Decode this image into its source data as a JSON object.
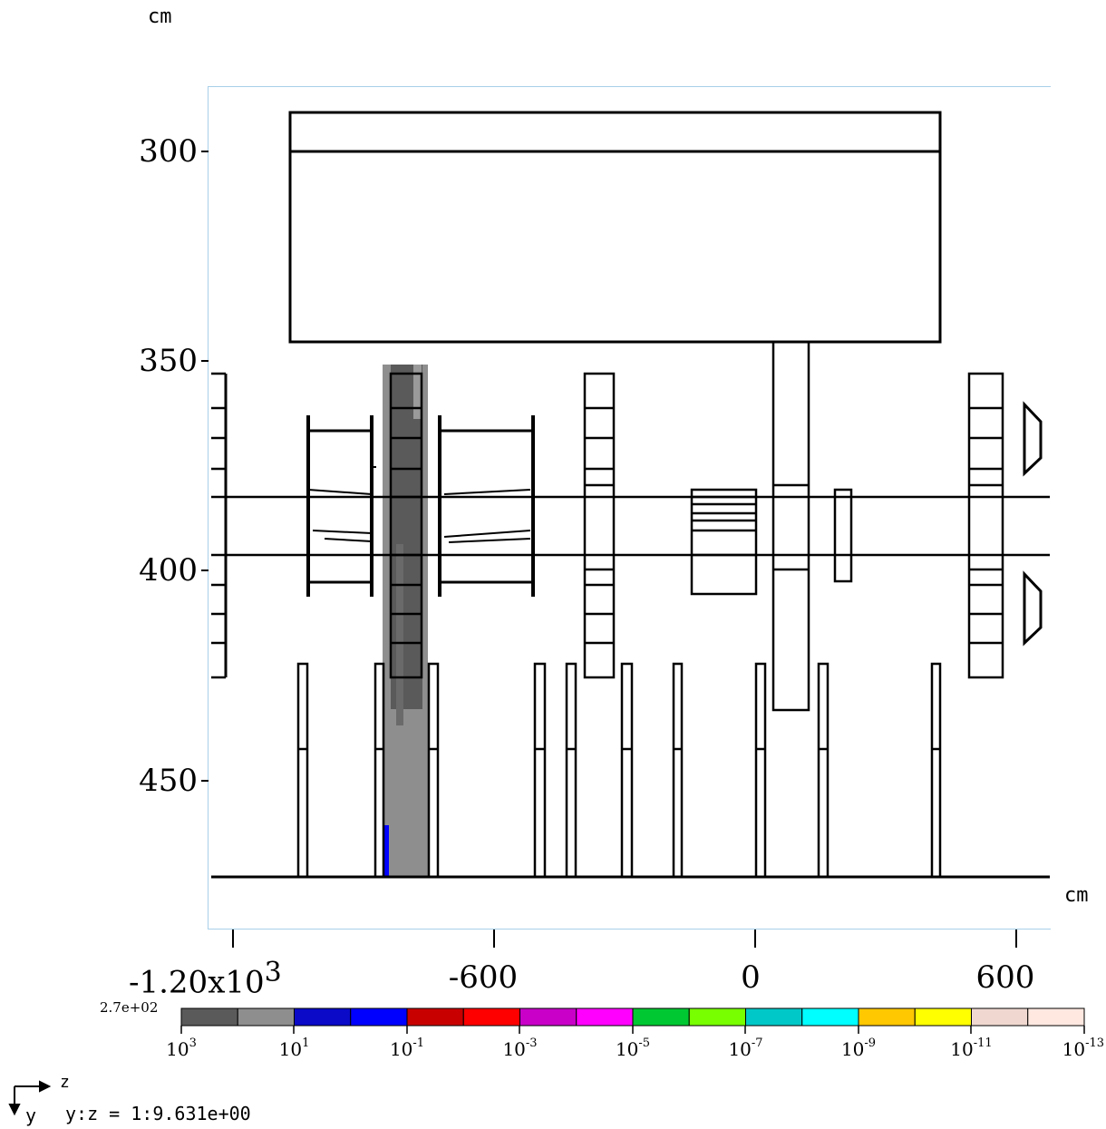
{
  "units": {
    "y_unit": "cm",
    "x_unit": "cm"
  },
  "axes": {
    "y_ticks": [
      "300",
      "350",
      "400",
      "450"
    ],
    "x_ticks": [
      "-1.20x10",
      "-600",
      "0",
      "600"
    ],
    "x_first_tick_exponent": "3"
  },
  "colorbar": {
    "max_label": "2.7e+02",
    "labels": [
      {
        "base": "10",
        "exp": "3"
      },
      {
        "base": "10",
        "exp": "1"
      },
      {
        "base": "10",
        "exp": "-1"
      },
      {
        "base": "10",
        "exp": "-3"
      },
      {
        "base": "10",
        "exp": "-5"
      },
      {
        "base": "10",
        "exp": "-7"
      },
      {
        "base": "10",
        "exp": "-9"
      },
      {
        "base": "10",
        "exp": "-11"
      },
      {
        "base": "10",
        "exp": "-13"
      }
    ],
    "colors": [
      "#5a5a5a",
      "#8e8e8e",
      "#0a0ac8",
      "#0000ff",
      "#c80000",
      "#ff0000",
      "#c800c8",
      "#ff00ff",
      "#00c832",
      "#78ff00",
      "#00c8c8",
      "#00ffff",
      "#ffc800",
      "#ffff00",
      "#f0d8d0",
      "#ffe8e0"
    ]
  },
  "orientation": {
    "h_axis_label": "z",
    "v_axis_label": "y",
    "ratio_text": "y:z = 1:9.631e+00"
  }
}
